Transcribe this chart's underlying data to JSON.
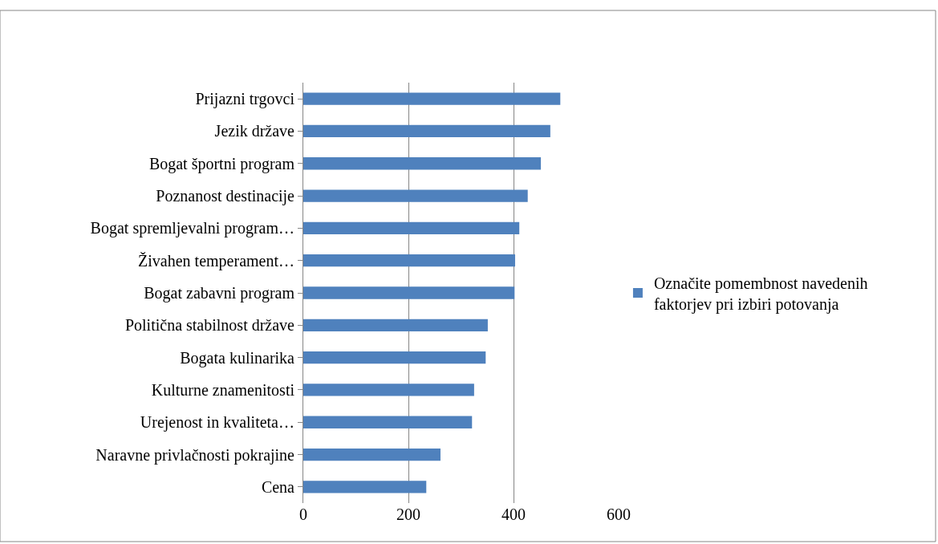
{
  "chart_data": {
    "type": "bar",
    "orientation": "horizontal",
    "categories": [
      "Prijazni trgovci",
      "Jezik države",
      "Bogat športni program",
      "Poznanost destinacije",
      "Bogat spremljevalni program…",
      "Živahen temperament…",
      "Bogat zabavni program",
      "Politična stabilnost države",
      "Bogata kulinarika",
      "Kulturne znamenitosti",
      "Urejenost in kvaliteta…",
      "Naravne privlačnosti pokrajine",
      "Cena"
    ],
    "series": [
      {
        "name": "Označite pomembnost navedenih faktorjev pri izbiri potovanja",
        "color": "#4f81bd",
        "values": [
          489,
          470,
          452,
          427,
          411,
          403,
          402,
          351,
          347,
          325,
          321,
          261,
          234
        ]
      }
    ],
    "xlim": [
      0,
      600
    ],
    "xticks": [
      0,
      200,
      400,
      600
    ],
    "grid": "x",
    "legend": "right"
  }
}
